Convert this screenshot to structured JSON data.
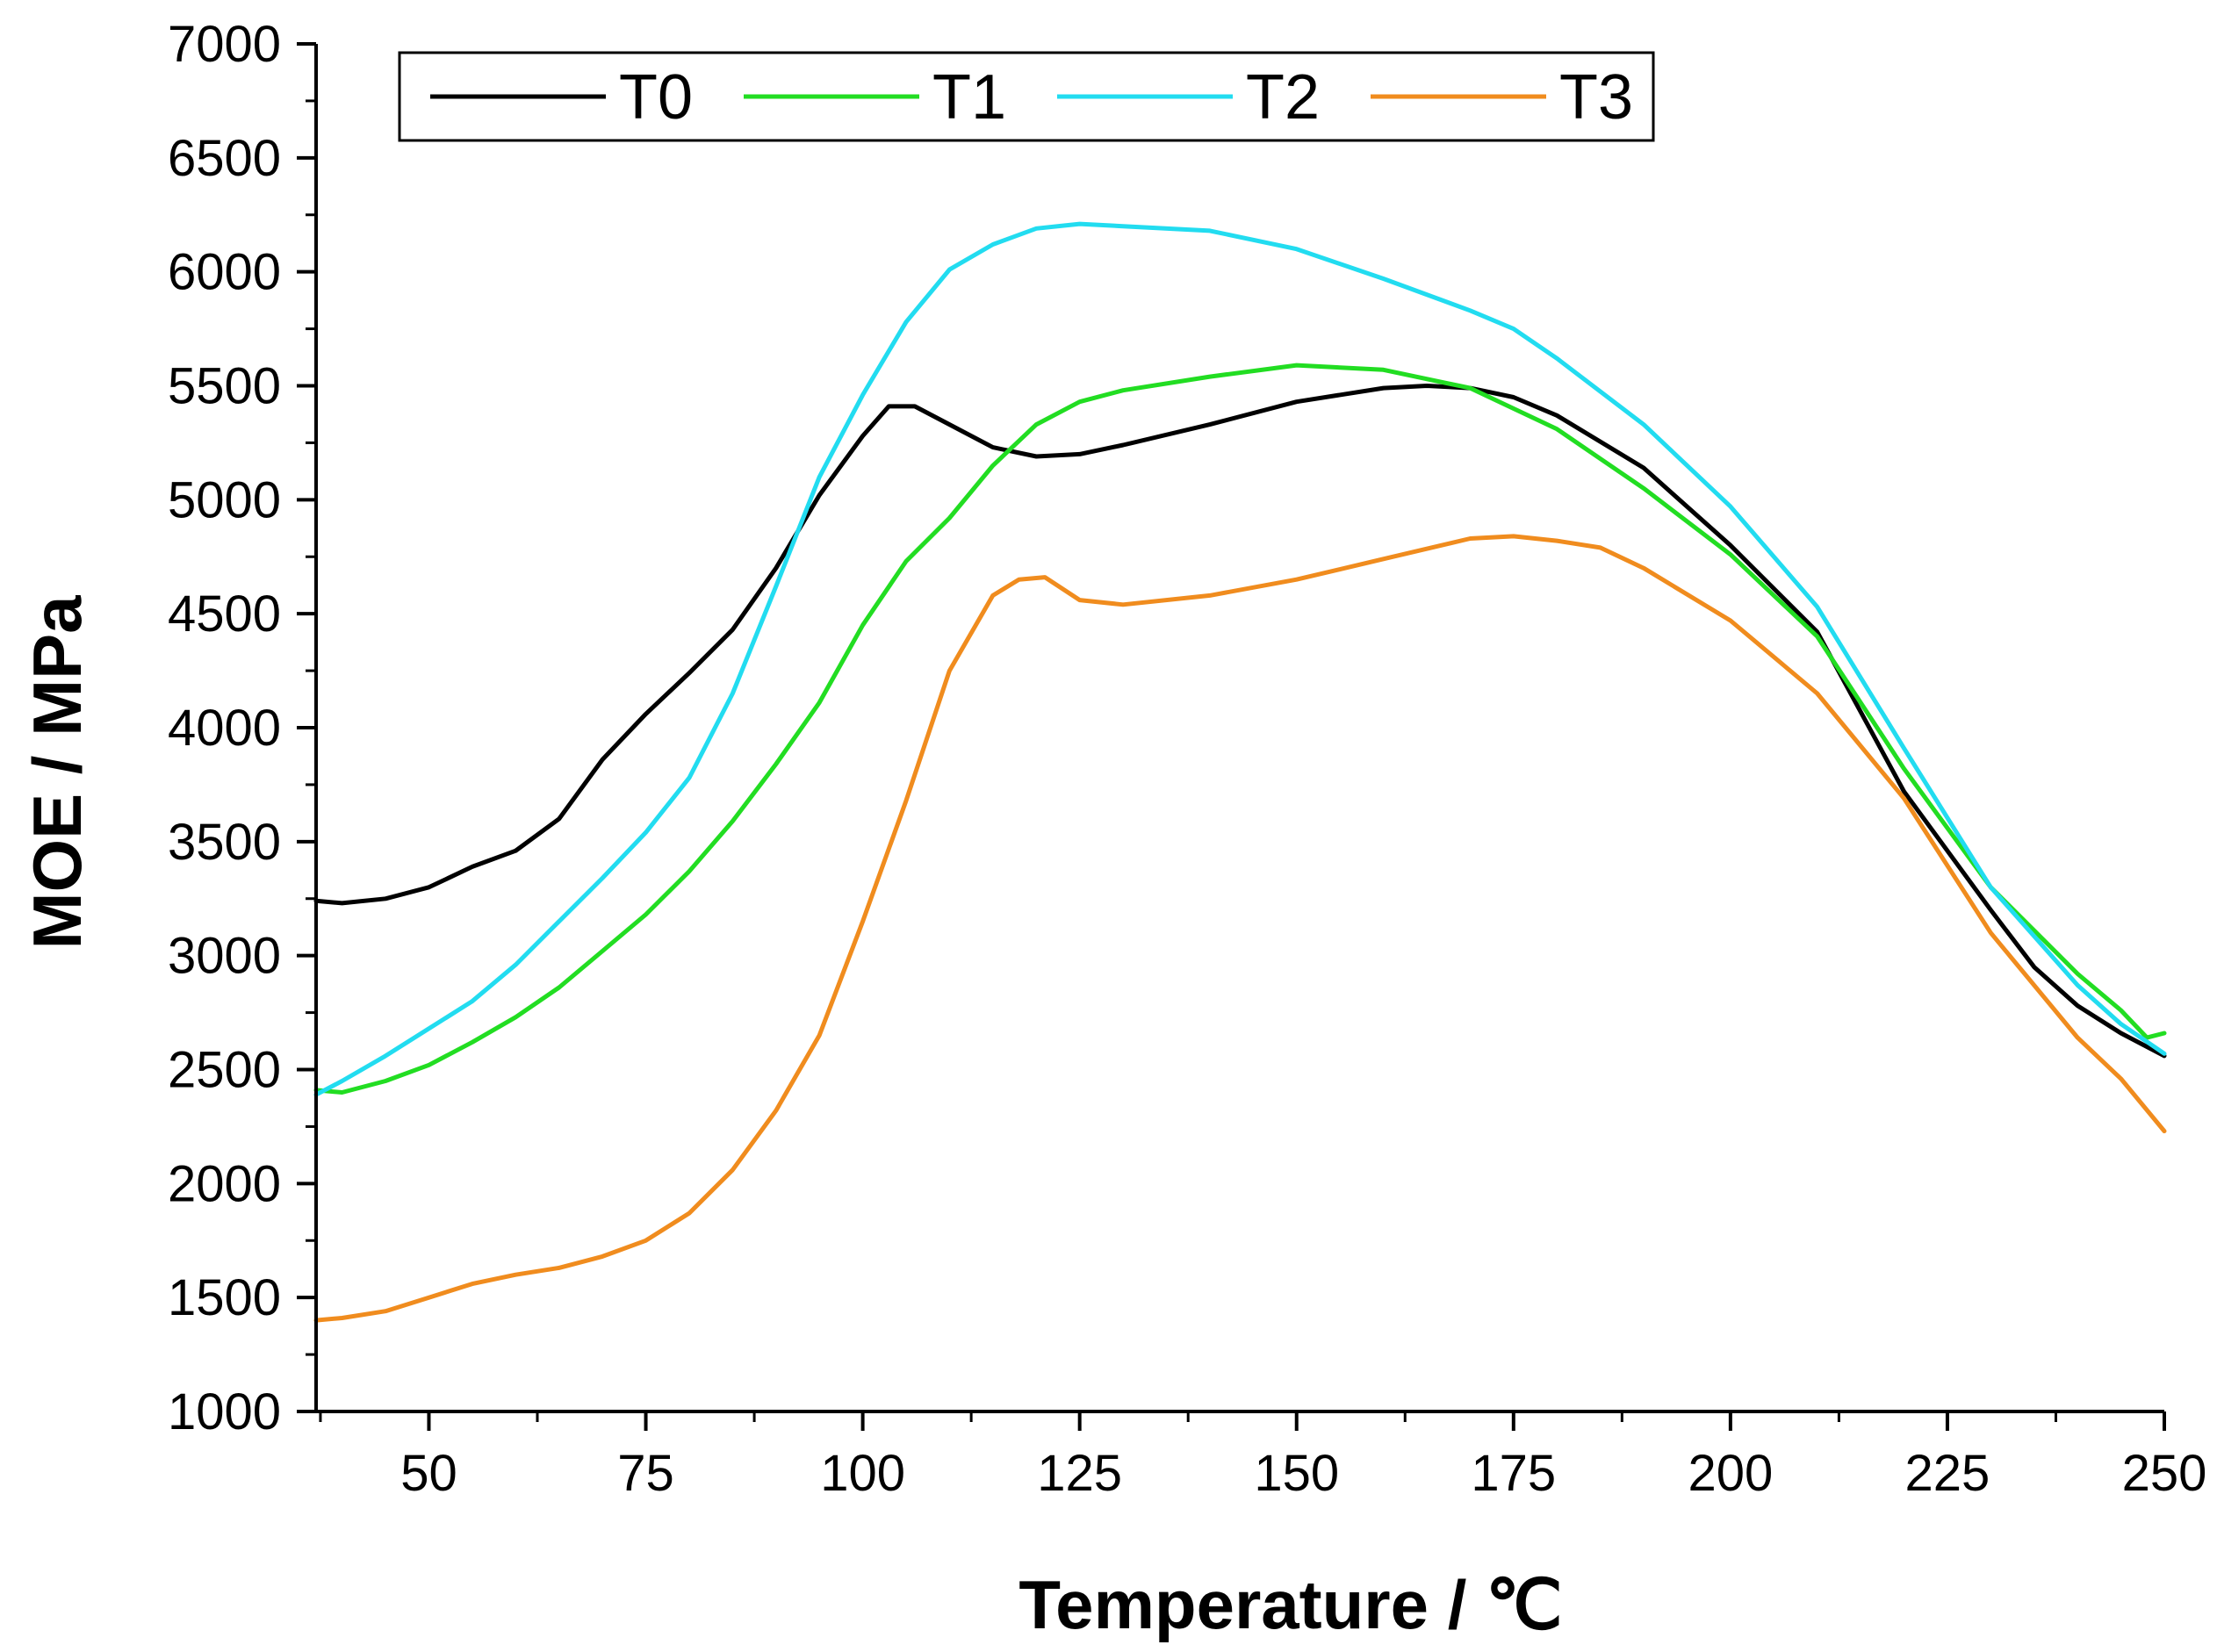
{
  "chart_data": {
    "type": "line",
    "xlabel": "Temperature / ℃",
    "ylabel": "MOE / MPa",
    "xlim": [
      37,
      250
    ],
    "ylim": [
      1000,
      7000
    ],
    "xticks": [
      50,
      75,
      100,
      125,
      150,
      175,
      200,
      225,
      250
    ],
    "yticks": [
      1000,
      1500,
      2000,
      2500,
      3000,
      3500,
      4000,
      4500,
      5000,
      5500,
      6000,
      6500,
      7000
    ],
    "grid": false,
    "legend": "top-left",
    "series": [
      {
        "name": "T0",
        "color": "#000000",
        "points": [
          [
            37,
            3240
          ],
          [
            40,
            3230
          ],
          [
            45,
            3250
          ],
          [
            50,
            3300
          ],
          [
            55,
            3390
          ],
          [
            60,
            3460
          ],
          [
            65,
            3600
          ],
          [
            70,
            3860
          ],
          [
            75,
            4060
          ],
          [
            80,
            4240
          ],
          [
            85,
            4430
          ],
          [
            90,
            4700
          ],
          [
            95,
            5020
          ],
          [
            100,
            5280
          ],
          [
            103,
            5410
          ],
          [
            106,
            5410
          ],
          [
            110,
            5330
          ],
          [
            115,
            5230
          ],
          [
            120,
            5190
          ],
          [
            125,
            5200
          ],
          [
            130,
            5240
          ],
          [
            140,
            5330
          ],
          [
            150,
            5430
          ],
          [
            160,
            5490
          ],
          [
            165,
            5500
          ],
          [
            170,
            5490
          ],
          [
            175,
            5450
          ],
          [
            180,
            5370
          ],
          [
            190,
            5140
          ],
          [
            200,
            4800
          ],
          [
            210,
            4420
          ],
          [
            220,
            3720
          ],
          [
            230,
            3200
          ],
          [
            235,
            2950
          ],
          [
            240,
            2780
          ],
          [
            245,
            2660
          ],
          [
            250,
            2560
          ]
        ]
      },
      {
        "name": "T1",
        "color": "#22dd22",
        "points": [
          [
            37,
            2410
          ],
          [
            40,
            2400
          ],
          [
            45,
            2450
          ],
          [
            50,
            2520
          ],
          [
            55,
            2620
          ],
          [
            60,
            2730
          ],
          [
            65,
            2860
          ],
          [
            70,
            3020
          ],
          [
            75,
            3180
          ],
          [
            80,
            3370
          ],
          [
            85,
            3590
          ],
          [
            90,
            3840
          ],
          [
            95,
            4110
          ],
          [
            100,
            4450
          ],
          [
            105,
            4730
          ],
          [
            110,
            4920
          ],
          [
            115,
            5150
          ],
          [
            120,
            5330
          ],
          [
            125,
            5430
          ],
          [
            130,
            5480
          ],
          [
            140,
            5540
          ],
          [
            150,
            5590
          ],
          [
            160,
            5570
          ],
          [
            170,
            5490
          ],
          [
            180,
            5310
          ],
          [
            190,
            5050
          ],
          [
            200,
            4760
          ],
          [
            210,
            4400
          ],
          [
            220,
            3820
          ],
          [
            230,
            3300
          ],
          [
            240,
            2920
          ],
          [
            245,
            2760
          ],
          [
            248,
            2640
          ],
          [
            250,
            2660
          ]
        ]
      },
      {
        "name": "T2",
        "color": "#22dcf0",
        "points": [
          [
            37,
            2390
          ],
          [
            40,
            2450
          ],
          [
            45,
            2560
          ],
          [
            50,
            2680
          ],
          [
            55,
            2800
          ],
          [
            60,
            2960
          ],
          [
            65,
            3150
          ],
          [
            70,
            3340
          ],
          [
            75,
            3540
          ],
          [
            80,
            3780
          ],
          [
            85,
            4150
          ],
          [
            90,
            4620
          ],
          [
            95,
            5100
          ],
          [
            100,
            5460
          ],
          [
            105,
            5780
          ],
          [
            110,
            6010
          ],
          [
            115,
            6120
          ],
          [
            120,
            6190
          ],
          [
            125,
            6210
          ],
          [
            130,
            6200
          ],
          [
            140,
            6180
          ],
          [
            150,
            6100
          ],
          [
            160,
            5970
          ],
          [
            170,
            5830
          ],
          [
            175,
            5750
          ],
          [
            180,
            5620
          ],
          [
            190,
            5330
          ],
          [
            200,
            4970
          ],
          [
            210,
            4530
          ],
          [
            220,
            3910
          ],
          [
            230,
            3300
          ],
          [
            240,
            2870
          ],
          [
            245,
            2700
          ],
          [
            250,
            2570
          ]
        ]
      },
      {
        "name": "T3",
        "color": "#f08c1e",
        "points": [
          [
            37,
            1400
          ],
          [
            40,
            1410
          ],
          [
            45,
            1440
          ],
          [
            50,
            1500
          ],
          [
            55,
            1560
          ],
          [
            60,
            1600
          ],
          [
            65,
            1630
          ],
          [
            70,
            1680
          ],
          [
            75,
            1750
          ],
          [
            80,
            1870
          ],
          [
            85,
            2060
          ],
          [
            90,
            2320
          ],
          [
            95,
            2650
          ],
          [
            100,
            3150
          ],
          [
            105,
            3680
          ],
          [
            110,
            4250
          ],
          [
            115,
            4580
          ],
          [
            118,
            4650
          ],
          [
            121,
            4660
          ],
          [
            125,
            4560
          ],
          [
            130,
            4540
          ],
          [
            140,
            4580
          ],
          [
            150,
            4650
          ],
          [
            160,
            4740
          ],
          [
            170,
            4830
          ],
          [
            175,
            4840
          ],
          [
            180,
            4820
          ],
          [
            185,
            4790
          ],
          [
            190,
            4700
          ],
          [
            200,
            4470
          ],
          [
            210,
            4150
          ],
          [
            220,
            3690
          ],
          [
            230,
            3100
          ],
          [
            240,
            2640
          ],
          [
            245,
            2460
          ],
          [
            250,
            2230
          ]
        ]
      }
    ]
  }
}
